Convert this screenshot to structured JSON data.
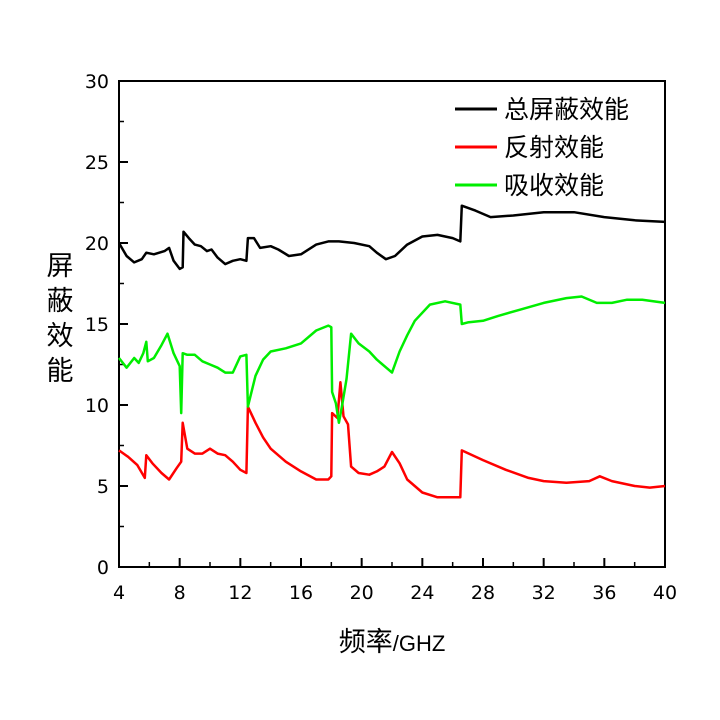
{
  "chart_data": {
    "type": "line",
    "xlabel_main": "频率",
    "xlabel_unit": "/GHZ",
    "ylabel": "屏蔽效能",
    "xlim": [
      4,
      40
    ],
    "ylim": [
      0,
      30
    ],
    "x_ticks": [
      "4",
      "8",
      "12",
      "16",
      "20",
      "24",
      "28",
      "32",
      "36",
      "40"
    ],
    "y_ticks": [
      "0",
      "5",
      "10",
      "15",
      "20",
      "25",
      "30"
    ],
    "grid": false,
    "legend_position": "top-right",
    "series": [
      {
        "name": "总屏蔽效能",
        "color": "#000000",
        "points": [
          [
            4,
            20
          ],
          [
            4.5,
            19.2
          ],
          [
            5,
            18.8
          ],
          [
            5.5,
            19.0
          ],
          [
            5.8,
            19.4
          ],
          [
            6.3,
            19.3
          ],
          [
            7,
            19.5
          ],
          [
            7.3,
            19.7
          ],
          [
            7.6,
            18.9
          ],
          [
            8,
            18.4
          ],
          [
            8.2,
            18.5
          ],
          [
            8.25,
            20.7
          ],
          [
            8.6,
            20.3
          ],
          [
            9,
            19.9
          ],
          [
            9.4,
            19.8
          ],
          [
            9.8,
            19.5
          ],
          [
            10.1,
            19.6
          ],
          [
            10.5,
            19.1
          ],
          [
            11,
            18.7
          ],
          [
            11.5,
            18.9
          ],
          [
            12,
            19.0
          ],
          [
            12.4,
            18.9
          ],
          [
            12.5,
            20.3
          ],
          [
            12.9,
            20.3
          ],
          [
            13.3,
            19.7
          ],
          [
            14,
            19.8
          ],
          [
            14.5,
            19.6
          ],
          [
            15.2,
            19.2
          ],
          [
            16,
            19.3
          ],
          [
            17,
            19.9
          ],
          [
            17.8,
            20.1
          ],
          [
            18.5,
            20.1
          ],
          [
            19.5,
            20.0
          ],
          [
            20.5,
            19.8
          ],
          [
            21,
            19.4
          ],
          [
            21.6,
            19.0
          ],
          [
            22.2,
            19.2
          ],
          [
            23,
            19.9
          ],
          [
            24,
            20.4
          ],
          [
            25,
            20.5
          ],
          [
            26,
            20.3
          ],
          [
            26.5,
            20.1
          ],
          [
            26.6,
            22.3
          ],
          [
            27.5,
            22.0
          ],
          [
            28.5,
            21.6
          ],
          [
            30,
            21.7
          ],
          [
            32,
            21.9
          ],
          [
            34,
            21.9
          ],
          [
            36,
            21.6
          ],
          [
            38,
            21.4
          ],
          [
            40,
            21.3
          ]
        ]
      },
      {
        "name": "反射效能",
        "color": "#ff0000",
        "points": [
          [
            4,
            7.2
          ],
          [
            4.6,
            6.8
          ],
          [
            5.2,
            6.3
          ],
          [
            5.7,
            5.5
          ],
          [
            5.8,
            6.9
          ],
          [
            6.2,
            6.4
          ],
          [
            6.8,
            5.8
          ],
          [
            7.3,
            5.4
          ],
          [
            7.8,
            6.1
          ],
          [
            8.1,
            6.5
          ],
          [
            8.2,
            8.9
          ],
          [
            8.5,
            7.3
          ],
          [
            9,
            7.0
          ],
          [
            9.5,
            7.0
          ],
          [
            10,
            7.3
          ],
          [
            10.5,
            7.0
          ],
          [
            11,
            6.9
          ],
          [
            11.5,
            6.5
          ],
          [
            12,
            6.0
          ],
          [
            12.4,
            5.8
          ],
          [
            12.5,
            9.9
          ],
          [
            13,
            8.9
          ],
          [
            13.5,
            8.0
          ],
          [
            14,
            7.3
          ],
          [
            15,
            6.5
          ],
          [
            16,
            5.9
          ],
          [
            17,
            5.4
          ],
          [
            17.8,
            5.4
          ],
          [
            18,
            5.6
          ],
          [
            18.05,
            9.5
          ],
          [
            18.4,
            9.2
          ],
          [
            18.6,
            11.4
          ],
          [
            18.8,
            9.3
          ],
          [
            19.1,
            8.8
          ],
          [
            19.3,
            6.2
          ],
          [
            19.8,
            5.8
          ],
          [
            20.5,
            5.7
          ],
          [
            21,
            5.9
          ],
          [
            21.5,
            6.2
          ],
          [
            22,
            7.1
          ],
          [
            22.5,
            6.4
          ],
          [
            23,
            5.4
          ],
          [
            24,
            4.6
          ],
          [
            25,
            4.3
          ],
          [
            26,
            4.3
          ],
          [
            26.5,
            4.3
          ],
          [
            26.6,
            7.2
          ],
          [
            28,
            6.6
          ],
          [
            29.5,
            6.0
          ],
          [
            31,
            5.5
          ],
          [
            32,
            5.3
          ],
          [
            33.5,
            5.2
          ],
          [
            35,
            5.3
          ],
          [
            35.7,
            5.6
          ],
          [
            36.5,
            5.3
          ],
          [
            38,
            5.0
          ],
          [
            39,
            4.9
          ],
          [
            40,
            5.0
          ]
        ]
      },
      {
        "name": "吸收效能",
        "color": "#00ee00",
        "points": [
          [
            4,
            12.9
          ],
          [
            4.5,
            12.3
          ],
          [
            5,
            12.9
          ],
          [
            5.3,
            12.6
          ],
          [
            5.6,
            13.2
          ],
          [
            5.8,
            13.9
          ],
          [
            5.9,
            12.7
          ],
          [
            6.3,
            12.9
          ],
          [
            6.8,
            13.7
          ],
          [
            7.2,
            14.4
          ],
          [
            7.6,
            13.2
          ],
          [
            8,
            12.4
          ],
          [
            8.1,
            9.5
          ],
          [
            8.2,
            13.2
          ],
          [
            8.5,
            13.1
          ],
          [
            9,
            13.1
          ],
          [
            9.5,
            12.7
          ],
          [
            10,
            12.5
          ],
          [
            10.5,
            12.3
          ],
          [
            11,
            12.0
          ],
          [
            11.5,
            12.0
          ],
          [
            12,
            13.0
          ],
          [
            12.4,
            13.1
          ],
          [
            12.5,
            9.9
          ],
          [
            13,
            11.8
          ],
          [
            13.5,
            12.8
          ],
          [
            14,
            13.3
          ],
          [
            15,
            13.5
          ],
          [
            16,
            13.8
          ],
          [
            17,
            14.6
          ],
          [
            17.8,
            14.9
          ],
          [
            18,
            14.8
          ],
          [
            18.05,
            10.8
          ],
          [
            18.3,
            10.1
          ],
          [
            18.5,
            8.9
          ],
          [
            18.7,
            9.9
          ],
          [
            19,
            11.6
          ],
          [
            19.3,
            14.4
          ],
          [
            19.8,
            13.8
          ],
          [
            20.5,
            13.3
          ],
          [
            21,
            12.8
          ],
          [
            22,
            12.0
          ],
          [
            22.5,
            13.3
          ],
          [
            23,
            14.3
          ],
          [
            23.5,
            15.2
          ],
          [
            24.5,
            16.2
          ],
          [
            25.5,
            16.4
          ],
          [
            26.5,
            16.2
          ],
          [
            26.6,
            15.0
          ],
          [
            27,
            15.1
          ],
          [
            28,
            15.2
          ],
          [
            29,
            15.5
          ],
          [
            30.5,
            15.9
          ],
          [
            32,
            16.3
          ],
          [
            33.5,
            16.6
          ],
          [
            34.5,
            16.7
          ],
          [
            35.5,
            16.3
          ],
          [
            36.5,
            16.3
          ],
          [
            37.5,
            16.5
          ],
          [
            38.5,
            16.5
          ],
          [
            40,
            16.3
          ]
        ]
      }
    ]
  }
}
